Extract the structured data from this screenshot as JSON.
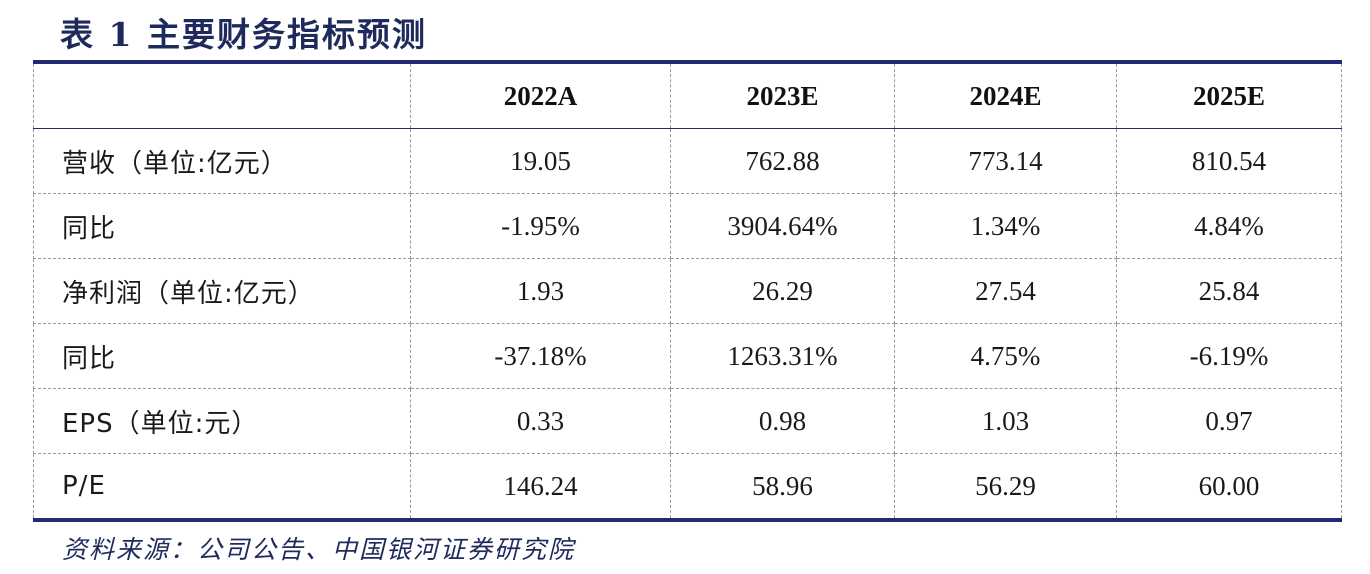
{
  "title": "表 1  主要财务指标预测",
  "table": {
    "header": [
      "",
      "2022A",
      "2023E",
      "2024E",
      "2025E"
    ],
    "rows": [
      {
        "label": "营收（单位:亿元）",
        "values": [
          "19.05",
          "762.88",
          "773.14",
          "810.54"
        ]
      },
      {
        "label": "同比",
        "values": [
          "-1.95%",
          "3904.64%",
          "1.34%",
          "4.84%"
        ]
      },
      {
        "label": "净利润（单位:亿元）",
        "values": [
          "1.93",
          "26.29",
          "27.54",
          "25.84"
        ]
      },
      {
        "label": "同比",
        "values": [
          "-37.18%",
          "1263.31%",
          "4.75%",
          "-6.19%"
        ]
      },
      {
        "label": "EPS（单位:元）",
        "values": [
          "0.33",
          "0.98",
          "1.03",
          "0.97"
        ]
      },
      {
        "label": "P/E",
        "values": [
          "146.24",
          "58.96",
          "56.29",
          "60.00"
        ]
      }
    ]
  },
  "source": "资料来源：公司公告、中国银河证券研究院"
}
